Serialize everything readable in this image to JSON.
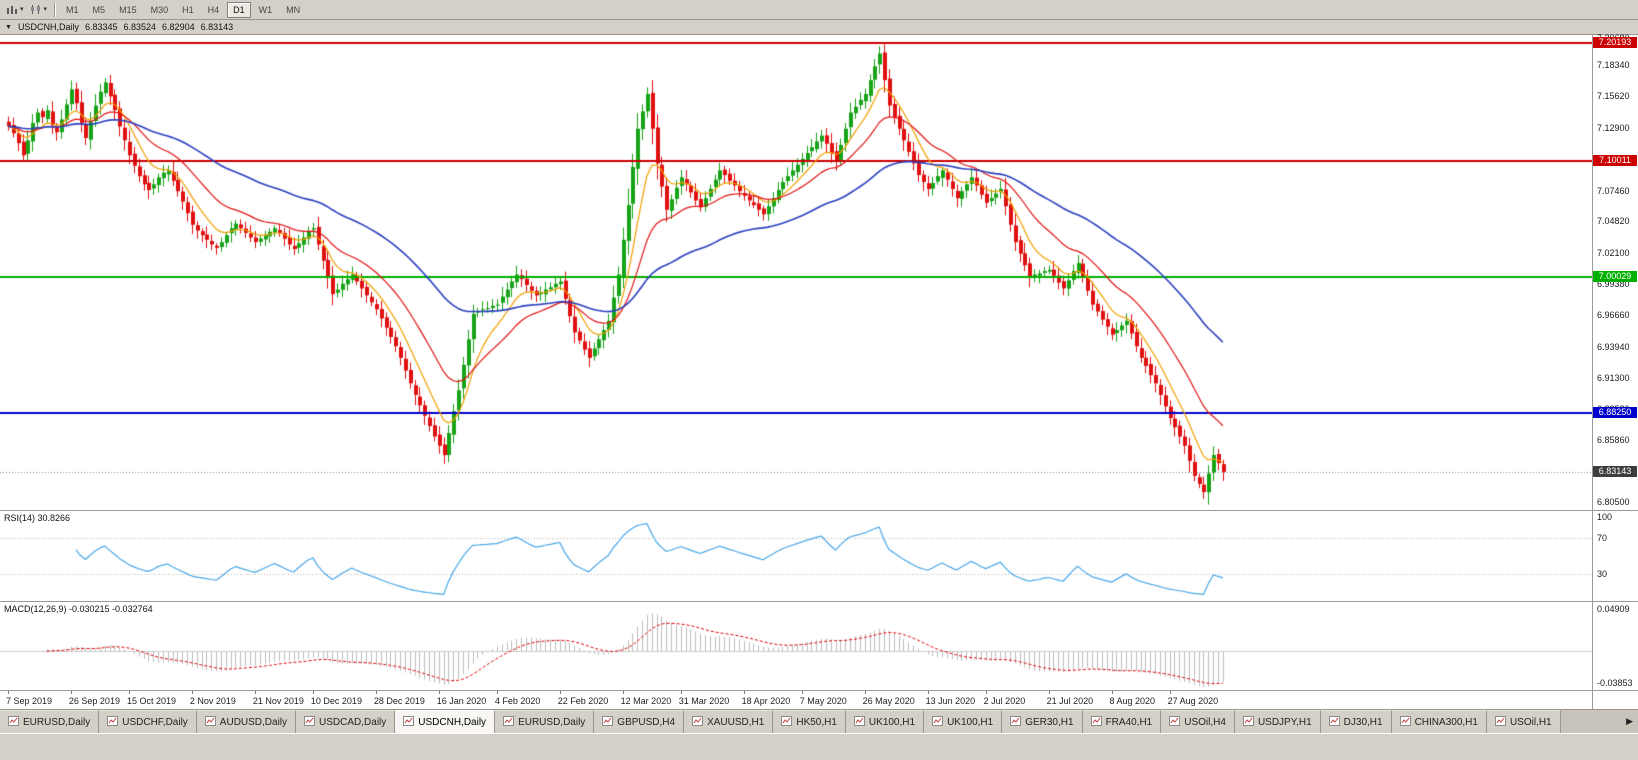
{
  "toolbar": {
    "timeframes": [
      "M1",
      "M5",
      "M15",
      "M30",
      "H1",
      "H4",
      "D1",
      "W1",
      "MN"
    ],
    "active_timeframe": "D1"
  },
  "title_bar": {
    "collapse_icon": "▼",
    "symbol": "USDCNH,Daily",
    "open": "6.83345",
    "high": "6.83524",
    "low": "6.82904",
    "close": "6.83143"
  },
  "price_axis_ticks": [
    "7.20680",
    "7.18340",
    "7.15620",
    "7.12900",
    "7.10180",
    "7.07460",
    "7.04820",
    "7.02100",
    "6.99380",
    "6.96660",
    "6.93940",
    "6.91300",
    "6.88580",
    "6.85860",
    "6.83140",
    "6.80500"
  ],
  "levels": [
    {
      "label": "7.20193",
      "value": 7.20193,
      "color": "#cc0000"
    },
    {
      "label": "7.10011",
      "value": 7.10011,
      "color": "#cc0000"
    },
    {
      "label": "7.00029",
      "value": 7.00029,
      "color": "#00b000"
    },
    {
      "label": "6.88250",
      "value": 6.8825,
      "color": "#0000cc"
    }
  ],
  "current_price": {
    "label": "6.83143",
    "value": 6.83143,
    "color": "#3d3d3d"
  },
  "rsi_panel": {
    "label": "RSI(14) 30.8266",
    "axis_ticks": [
      {
        "label": "100",
        "value": 100
      },
      {
        "label": "70",
        "value": 70
      },
      {
        "label": "30",
        "value": 30
      }
    ],
    "levels": [
      70,
      30
    ]
  },
  "macd_panel": {
    "label": "MACD(12,26,9) -0.030215 -0.032764",
    "axis_ticks": [
      {
        "label": "0.04909",
        "value": 0.04909
      },
      {
        "label": "-0.03853",
        "value": -0.03853
      }
    ]
  },
  "date_axis": [
    "7 Sep 2019",
    "26 Sep 2019",
    "15 Oct 2019",
    "2 Nov 2019",
    "21 Nov 2019",
    "10 Dec 2019",
    "28 Dec 2019",
    "16 Jan 2020",
    "4 Feb 2020",
    "22 Feb 2020",
    "12 Mar 2020",
    "31 Mar 2020",
    "18 Apr 2020",
    "7 May 2020",
    "26 May 2020",
    "13 Jun 2020",
    "2 Jul 2020",
    "21 Jul 2020",
    "8 Aug 2020",
    "27 Aug 2020"
  ],
  "tabs": {
    "items": [
      "EURUSD,Daily",
      "USDCHF,Daily",
      "AUDUSD,Daily",
      "USDCAD,Daily",
      "USDCNH,Daily",
      "EURUSD,Daily",
      "GBPUSD,H4",
      "XAUUSD,H1",
      "HK50,H1",
      "UK100,H1",
      "UK100,H1",
      "GER30,H1",
      "FRA40,H1",
      "USOil,H4",
      "USDJPY,H1",
      "DJ30,H1",
      "CHINA300,H1",
      "USOil,H1"
    ],
    "active_index": 4,
    "scroll_right_icon": "▶"
  },
  "chart_data": {
    "type": "candlestick",
    "symbol": "USDCNH",
    "timeframe": "Daily",
    "title": "USDCNH,Daily",
    "ohlc_current": {
      "open": 6.83345,
      "high": 6.83524,
      "low": 6.82904,
      "close": 6.83143
    },
    "price_range": {
      "top": 7.209,
      "bottom": 6.7985
    },
    "candle_colors": {
      "up": "#17a317",
      "down": "#e01010"
    },
    "closes": [
      7.13,
      7.124,
      7.1155,
      7.105,
      7.118,
      7.133,
      7.142,
      7.138,
      7.144,
      7.131,
      7.125,
      7.136,
      7.149,
      7.162,
      7.15,
      7.133,
      7.12,
      7.134,
      7.148,
      7.16,
      7.168,
      7.156,
      7.144,
      7.13,
      7.118,
      7.105,
      7.096,
      7.087,
      7.08,
      7.075,
      7.08,
      7.086,
      7.09,
      7.092,
      7.083,
      7.074,
      7.065,
      7.055,
      7.045,
      7.04,
      7.036,
      7.032,
      7.028,
      7.025,
      7.03,
      7.036,
      7.042,
      7.046,
      7.042,
      7.038,
      7.034,
      7.03,
      7.033,
      7.036,
      7.039,
      7.042,
      7.038,
      7.033,
      7.028,
      7.024,
      7.029,
      7.034,
      7.039,
      7.042,
      7.028,
      7.014,
      7.0,
      6.985,
      6.989,
      6.994,
      6.998,
      7.002,
      6.996,
      6.99,
      6.984,
      6.978,
      6.972,
      6.964,
      6.956,
      6.948,
      6.94,
      6.93,
      6.919,
      6.908,
      6.898,
      6.889,
      6.88,
      6.871,
      6.862,
      6.854,
      6.846,
      6.865,
      6.884,
      6.902,
      6.924,
      6.946,
      6.968,
      6.97,
      6.972,
      6.973,
      6.975,
      6.976,
      6.983,
      6.989,
      6.996,
      7.002,
      6.998,
      6.993,
      6.988,
      6.984,
      6.986,
      6.989,
      6.991,
      6.994,
      6.996,
      6.981,
      6.966,
      6.952,
      6.945,
      6.937,
      6.93,
      6.938,
      6.946,
      6.954,
      6.962,
      6.982,
      7.002,
      7.032,
      7.062,
      7.095,
      7.128,
      7.143,
      7.158,
      7.128,
      7.098,
      7.078,
      7.058,
      7.067,
      7.077,
      7.086,
      7.08,
      7.073,
      7.066,
      7.06,
      7.068,
      7.076,
      7.084,
      7.092,
      7.088,
      7.083,
      7.079,
      7.074,
      7.07,
      7.066,
      7.062,
      7.058,
      7.054,
      7.061,
      7.068,
      7.075,
      7.082,
      7.087,
      7.092,
      7.097,
      7.102,
      7.107,
      7.112,
      7.117,
      7.122,
      7.115,
      7.107,
      7.1,
      7.114,
      7.128,
      7.142,
      7.147,
      7.153,
      7.158,
      7.17,
      7.182,
      7.193,
      7.17,
      7.148,
      7.138,
      7.128,
      7.118,
      7.108,
      7.098,
      7.088,
      7.082,
      7.076,
      7.081,
      7.087,
      7.092,
      7.084,
      7.076,
      7.068,
      7.074,
      7.08,
      7.086,
      7.079,
      7.071,
      7.064,
      7.068,
      7.072,
      7.076,
      7.061,
      7.045,
      7.03,
      7.02,
      7.01,
      7.0,
      7.002,
      7.003,
      7.005,
      7.006,
      7.001,
      6.995,
      6.99,
      6.997,
      7.005,
      7.012,
      7.0,
      6.988,
      6.976,
      6.97,
      6.963,
      6.957,
      6.95,
      6.954,
      6.958,
      6.962,
      6.951,
      6.94,
      6.93,
      6.923,
      6.915,
      6.908,
      6.898,
      6.888,
      6.878,
      6.87,
      6.862,
      6.854,
      6.841,
      6.828,
      6.821,
      6.814,
      6.83,
      6.846,
      6.839,
      6.8314
    ],
    "moving_averages": [
      {
        "period": 8,
        "color": "#f0a000"
      },
      {
        "period": 20,
        "color": "#e01515"
      },
      {
        "period": 55,
        "color": "#2b3fbf"
      }
    ],
    "rsi": {
      "period": 14,
      "last": 30.8266,
      "color": "#4aa7e8",
      "scale": [
        0,
        100
      ],
      "level_lines": [
        70,
        30
      ]
    },
    "macd": {
      "fast": 12,
      "slow": 26,
      "signal": 9,
      "last_macd": -0.030215,
      "last_signal": -0.032764,
      "hist_color": "#bdbdbd",
      "signal_color": "#dd0000",
      "scale": [
        -0.047,
        0.058
      ]
    }
  }
}
